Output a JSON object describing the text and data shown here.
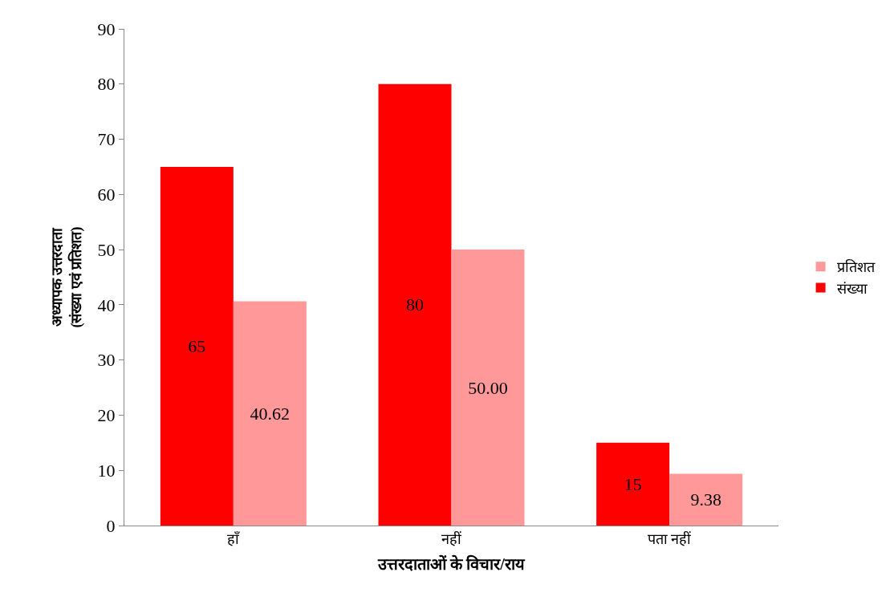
{
  "chart_data": {
    "type": "bar",
    "xlabel": "उत्तरदाताओं के विचार/राय",
    "ylabel": "अध्यापक उत्तरदाता\n(संख्या एवं प्रतिशत)",
    "categories": [
      "हाँ",
      "नहीं",
      "पता नहीं"
    ],
    "series": [
      {
        "name": "संख्या",
        "color": "#ff0000",
        "values": [
          65,
          80,
          15
        ],
        "value_labels": [
          "65",
          "80",
          "15"
        ]
      },
      {
        "name": "प्रतिशत",
        "color": "#ff9999",
        "values": [
          40.62,
          50.0,
          9.38
        ],
        "value_labels": [
          "40.62",
          "50.00",
          "9.38"
        ]
      }
    ],
    "ylim": [
      0,
      90
    ],
    "yticks": [
      0,
      10,
      20,
      30,
      40,
      50,
      60,
      70,
      80,
      90
    ],
    "legend": "right"
  }
}
